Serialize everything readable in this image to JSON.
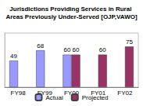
{
  "chart_data": {
    "type": "bar",
    "title": "Jurisdictions Providing Services in Rural Areas Previously Under-Served [OJP,VAWO]",
    "categories": [
      "FY98",
      "FY99",
      "FY00",
      "FY01",
      "FY02"
    ],
    "series": [
      {
        "name": "Actual",
        "color": "#9999ff",
        "values": [
          49,
          68,
          60,
          null,
          null
        ]
      },
      {
        "name": "Projected",
        "color": "#993366",
        "values": [
          null,
          null,
          60,
          60,
          75
        ]
      }
    ],
    "ylim": [
      0,
      100
    ],
    "data_labels": true,
    "tick_labels": "x",
    "legend": "bottom",
    "grid": false
  }
}
